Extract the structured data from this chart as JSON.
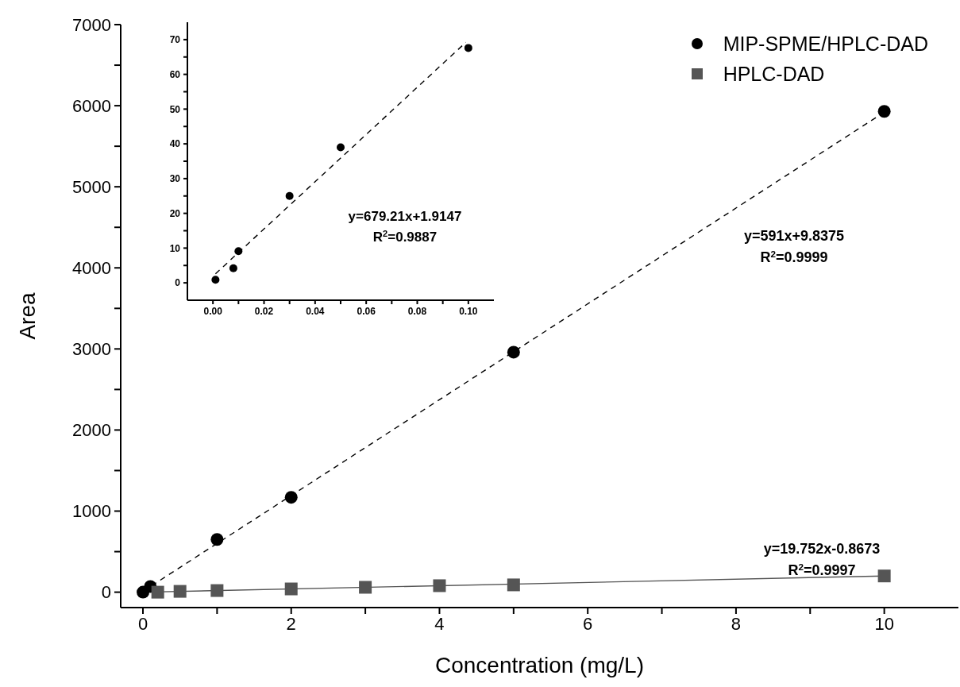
{
  "chart_data": [
    {
      "type": "scatter",
      "xlabel": "Concentration (mg/L)",
      "ylabel": "Area",
      "xlim": [
        -0.3,
        11
      ],
      "ylim": [
        -190,
        7000
      ],
      "xticks": [
        0,
        {
          "value": 1,
          "label": null
        },
        2,
        {
          "value": 3,
          "label": null
        },
        4,
        {
          "value": 5,
          "label": null
        },
        6,
        {
          "value": 7,
          "label": null
        },
        8,
        {
          "value": 9,
          "label": null
        },
        10
      ],
      "yticks": [
        0,
        {
          "value": 500,
          "label": null
        },
        1000,
        {
          "value": 1500,
          "label": null
        },
        2000,
        {
          "value": 2500,
          "label": null
        },
        3000,
        {
          "value": 3500,
          "label": null
        },
        4000,
        {
          "value": 4500,
          "label": null
        },
        5000,
        {
          "value": 5500,
          "label": null
        },
        6000,
        {
          "value": 6500,
          "label": null
        },
        7000
      ],
      "legend": "top right",
      "series": [
        {
          "name": "MIP-SPME/HPLC-DAD",
          "color": "#000000",
          "marker": "circle",
          "x": [
            0.001,
            0.1,
            1,
            2,
            5,
            10
          ],
          "values": [
            0,
            70,
            650,
            1170,
            2960,
            5930
          ]
        },
        {
          "name": "HPLC-DAD",
          "color": "#555555",
          "marker": "square",
          "x": [
            0.2,
            0.5,
            1,
            2,
            3,
            4,
            5,
            10
          ],
          "values": [
            0,
            10,
            20,
            40,
            60,
            80,
            90,
            200
          ]
        },
        {
          "type": "line",
          "color": "#000000",
          "marker": "none",
          "line_style": "dashed",
          "x": [
            0,
            10
          ],
          "values": [
            10,
            5920
          ]
        },
        {
          "type": "line",
          "color": "#555555",
          "marker": "none",
          "line_style": "solid",
          "x": [
            0,
            10
          ],
          "values": [
            0,
            200
          ]
        }
      ],
      "annotations": [
        "y=591x+9.8375",
        "R$^{2}$=0.9999",
        "y=19.752x-0.8673",
        "R$^{2}$=0.9997"
      ]
    },
    {
      "type": "scatter",
      "xlim": [
        -0.01,
        0.11
      ],
      "ylim": [
        -5,
        75
      ],
      "xticks": [
        {
          "value": 0,
          "label": "0.00"
        },
        {
          "value": 0.01,
          "label": null
        },
        {
          "value": 0.02,
          "label": "0.02"
        },
        {
          "value": 0.03,
          "label": null
        },
        {
          "value": 0.04,
          "label": "0.04"
        },
        {
          "value": 0.05,
          "label": null
        },
        {
          "value": 0.06,
          "label": "0.06"
        },
        {
          "value": 0.07,
          "label": null
        },
        {
          "value": 0.08,
          "label": "0.08"
        },
        {
          "value": 0.09,
          "label": null
        },
        {
          "value": 0.1,
          "label": "0.10"
        }
      ],
      "yticks": [
        0,
        {
          "value": 5,
          "label": null
        },
        10,
        {
          "value": 15,
          "label": null
        },
        20,
        {
          "value": 25,
          "label": null
        },
        30,
        {
          "value": 35,
          "label": null
        },
        40,
        {
          "value": 45,
          "label": null
        },
        50,
        {
          "value": 55,
          "label": null
        },
        60,
        {
          "value": 65,
          "label": null
        },
        70
      ],
      "series": [
        {
          "color": "#000000",
          "marker": "circle",
          "x": [
            0.001,
            0.008,
            0.01,
            0.03,
            0.05,
            0.1
          ],
          "values": [
            0.9,
            4.2,
            9.1,
            25,
            39,
            67.6
          ]
        },
        {
          "type": "line",
          "color": "#000000",
          "marker": "none",
          "line_style": "dashed",
          "x": [
            0.001,
            0.099
          ],
          "values": [
            2.6,
            69.2
          ]
        }
      ],
      "annotations": [
        "y=679.21x+1.9147",
        "R$^{2}$=0.9887"
      ]
    }
  ]
}
